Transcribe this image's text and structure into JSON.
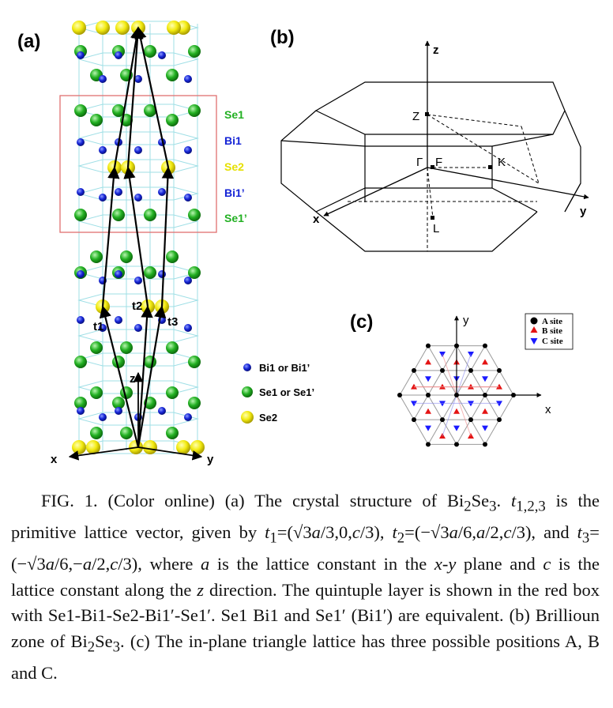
{
  "panels": {
    "a": {
      "label": "(a)",
      "layer_labels": [
        "Se1",
        "Bi1",
        "Se2",
        "Bi1’",
        "Se1’"
      ],
      "vectors": [
        "t1",
        "t2",
        "t3"
      ],
      "axes": [
        "x",
        "y",
        "z"
      ],
      "legend": [
        {
          "color": "#1524d6",
          "text": "Bi1 or Bi1’"
        },
        {
          "color": "#22b022",
          "text": "Se1 or Se1’"
        },
        {
          "color": "#e6e000",
          "text": "Se2"
        }
      ]
    },
    "b": {
      "label": "(b)",
      "axes": [
        "x",
        "y",
        "z"
      ],
      "points": [
        "Z",
        "Γ",
        "F",
        "K",
        "L"
      ]
    },
    "c": {
      "label": "(c)",
      "axes": [
        "x",
        "y"
      ],
      "legend": [
        {
          "color": "#000000",
          "text": "A site"
        },
        {
          "color": "#e41414",
          "text": "B site"
        },
        {
          "color": "#1a1aff",
          "text": "C site"
        }
      ]
    }
  },
  "colors": {
    "bi": "#1524d6",
    "se1": "#22b022",
    "se2": "#e6e000",
    "box": "#e07070",
    "cell": "#9fdfe6"
  },
  "caption": {
    "p1": "FIG. 1. (Color online) (a) The crystal structure of Bi",
    "p2": "Se",
    "p3": ". ",
    "p4": "t",
    "p5": "1,2,3",
    "p6": " is the primitive lattice vector, given by ",
    "p7": "t",
    "p8": "1",
    "p9": "=(√3",
    "p10": "a",
    "p11": "/3,0,",
    "p12": "c",
    "p13": "/3), ",
    "p14": "t",
    "p15": "2",
    "p16": "=(−√3",
    "p17": "a",
    "p18": "/6,",
    "p19": "a",
    "p20": "/2,",
    "p21": "c",
    "p22": "/3), and ",
    "p23": "t",
    "p24": "3",
    "p25": "=(−√3",
    "p26": "a",
    "p27": "/6,−",
    "p28": "a",
    "p29": "/2,",
    "p30": "c",
    "p31": "/3), where ",
    "p32": "a",
    "p33": " is the lattice constant in the ",
    "p34": "x",
    "p35": "-",
    "p36": "y",
    "p37": " plane and ",
    "p38": "c",
    "p39": " is the lattice constant along the ",
    "p40": "z",
    "p41": " direction. The quintuple layer is shown in the red box with Se1-Bi1-Se2-Bi1′-Se1′. Se1 Bi1 and Se1′ (Bi1′) are equivalent. (b) Brillioun zone of Bi",
    "p42": "Se",
    "p43": ". (c) The in-plane triangle lattice has three possible positions A, B and C.",
    "sub2": "2",
    "sub3": "3"
  }
}
